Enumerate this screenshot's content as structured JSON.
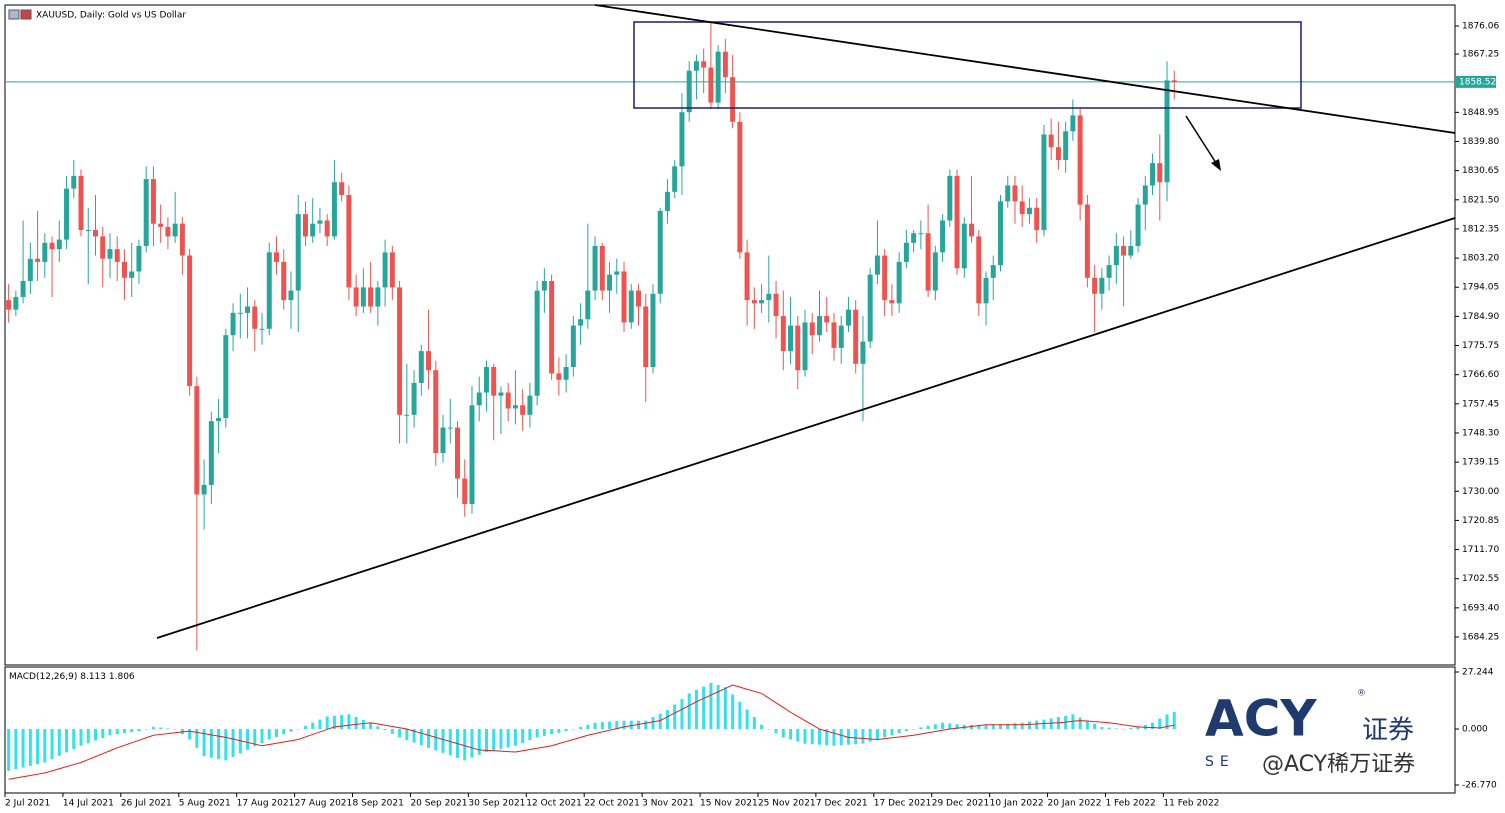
{
  "header": {
    "title": "XAUUSD, Daily: Gold vs US Dollar"
  },
  "chart_data": [
    {
      "type": "candlestick",
      "categories": [
        "2 Jul 2021",
        null,
        null,
        null,
        null,
        null,
        null,
        null,
        "14 Jul 2021",
        null,
        null,
        null,
        null,
        null,
        null,
        null,
        "26 Jul 2021",
        null,
        null,
        null,
        null,
        null,
        null,
        null,
        "5 Aug 2021",
        null,
        null,
        null,
        null,
        null,
        null,
        null,
        "17 Aug 2021",
        null,
        null,
        null,
        null,
        null,
        null,
        null,
        "27 Aug 2021",
        null,
        null,
        null,
        null,
        null,
        null,
        null,
        "8 Sep 2021",
        null,
        null,
        null,
        null,
        null,
        null,
        null,
        "20 Sep 2021",
        null,
        null,
        null,
        null,
        null,
        null,
        null,
        "30 Sep 2021",
        null,
        null,
        null,
        null,
        null,
        null,
        null,
        "12 Oct 2021",
        null,
        null,
        null,
        null,
        null,
        null,
        null,
        "22 Oct 2021",
        null,
        null,
        null,
        null,
        null,
        null,
        null,
        "3 Nov 2021",
        null,
        null,
        null,
        null,
        null,
        null,
        null,
        "15 Nov 2021",
        null,
        null,
        null,
        null,
        null,
        null,
        null,
        "25 Nov 2021",
        null,
        null,
        null,
        null,
        null,
        null,
        null,
        "7 Dec 2021",
        null,
        null,
        null,
        null,
        null,
        null,
        null,
        "17 Dec 2021",
        null,
        null,
        null,
        null,
        null,
        null,
        null,
        "29 Dec 2021",
        null,
        null,
        null,
        null,
        null,
        null,
        null,
        "10 Jan 2022",
        null,
        null,
        null,
        null,
        null,
        null,
        null,
        "20 Jan 2022",
        null,
        null,
        null,
        null,
        null,
        null,
        null,
        "1 Feb 2022",
        null,
        null,
        null,
        null,
        null,
        null,
        null,
        "11 Feb 2022",
        null
      ],
      "open": [
        1790,
        1787,
        1791,
        1796,
        1803,
        1802,
        1808,
        1806,
        1809,
        1825,
        1829,
        1812,
        1812,
        1810,
        1803,
        1806,
        1802,
        1797,
        1799,
        1807,
        1828,
        1814,
        1813,
        1810,
        1814,
        1804,
        1763,
        1729,
        1732,
        1752,
        1753,
        1779,
        1786,
        1786,
        1788,
        1781,
        1781,
        1805,
        1802,
        1790,
        1793,
        1817,
        1810,
        1814,
        1815,
        1810,
        1827,
        1823,
        1794,
        1788,
        1794,
        1788,
        1794,
        1805,
        1794,
        1754,
        1754,
        1764,
        1774,
        1768,
        1742,
        1750,
        1750,
        1734,
        1726,
        1757,
        1761,
        1769,
        1760,
        1761,
        1756,
        1757,
        1754,
        1760,
        1793,
        1796,
        1767,
        1765,
        1769,
        1782,
        1784,
        1793,
        1807,
        1793,
        1798,
        1799,
        1783,
        1793,
        1788,
        1769,
        1792,
        1818,
        1824,
        1832,
        1849,
        1862,
        1865,
        1863,
        1852,
        1868,
        1860,
        1846,
        1805,
        1790,
        1789,
        1790,
        1792,
        1785,
        1774,
        1782,
        1768,
        1783,
        1779,
        1785,
        1783,
        1775,
        1782,
        1787,
        1770,
        1777,
        1798,
        1804,
        1790,
        1789,
        1802,
        1808,
        1811,
        1811,
        1793,
        1805,
        1815,
        1829,
        1800,
        1814,
        1810,
        1789,
        1797,
        1801,
        1821,
        1826,
        1821,
        1817,
        1819,
        1812,
        1842,
        1838,
        1834,
        1843,
        1848,
        1820,
        1797,
        1792,
        1797,
        1801,
        1807,
        1804,
        1807,
        1820,
        1826,
        1833,
        1827,
        1859
      ],
      "high": [
        1795,
        1793,
        1815,
        1808,
        1818,
        1811,
        1810,
        1815,
        1829,
        1834,
        1831,
        1819,
        1823,
        1813,
        1811,
        1810,
        1806,
        1808,
        1809,
        1832,
        1832,
        1820,
        1816,
        1824,
        1816,
        1806,
        1766,
        1740,
        1755,
        1759,
        1781,
        1789,
        1792,
        1794,
        1790,
        1786,
        1808,
        1810,
        1806,
        1799,
        1823,
        1821,
        1822,
        1819,
        1817,
        1834,
        1830,
        1826,
        1798,
        1800,
        1802,
        1796,
        1809,
        1807,
        1796,
        1770,
        1768,
        1776,
        1787,
        1771,
        1754,
        1759,
        1752,
        1740,
        1763,
        1766,
        1771,
        1770,
        1763,
        1764,
        1768,
        1762,
        1764,
        1796,
        1800,
        1798,
        1772,
        1773,
        1785,
        1789,
        1814,
        1810,
        1808,
        1802,
        1803,
        1802,
        1795,
        1795,
        1792,
        1795,
        1819,
        1828,
        1834,
        1855,
        1865,
        1867,
        1869,
        1877,
        1870,
        1872,
        1867,
        1849,
        1809,
        1794,
        1795,
        1804,
        1796,
        1793,
        1791,
        1785,
        1787,
        1786,
        1793,
        1791,
        1786,
        1785,
        1791,
        1790,
        1785,
        1800,
        1815,
        1806,
        1795,
        1805,
        1812,
        1812,
        1815,
        1820,
        1807,
        1817,
        1831,
        1831,
        1816,
        1829,
        1812,
        1799,
        1804,
        1823,
        1829,
        1829,
        1826,
        1822,
        1822,
        1845,
        1847,
        1846,
        1846,
        1853,
        1850,
        1823,
        1801,
        1800,
        1804,
        1811,
        1810,
        1812,
        1822,
        1829,
        1836,
        1842,
        1865,
        1862
      ],
      "low": [
        1783,
        1785,
        1789,
        1792,
        1796,
        1797,
        1791,
        1802,
        1806,
        1822,
        1810,
        1795,
        1804,
        1794,
        1797,
        1796,
        1790,
        1791,
        1795,
        1805,
        1807,
        1808,
        1806,
        1808,
        1798,
        1760,
        1680,
        1718,
        1726,
        1742,
        1750,
        1774,
        1778,
        1778,
        1774,
        1776,
        1779,
        1798,
        1787,
        1781,
        1780,
        1807,
        1808,
        1811,
        1807,
        1809,
        1821,
        1790,
        1785,
        1786,
        1786,
        1782,
        1788,
        1790,
        1745,
        1745,
        1750,
        1760,
        1762,
        1738,
        1739,
        1745,
        1728,
        1722,
        1723,
        1752,
        1755,
        1746,
        1748,
        1752,
        1751,
        1749,
        1750,
        1757,
        1786,
        1765,
        1760,
        1761,
        1766,
        1776,
        1781,
        1790,
        1790,
        1786,
        1792,
        1780,
        1781,
        1782,
        1758,
        1767,
        1789,
        1814,
        1822,
        1823,
        1846,
        1853,
        1855,
        1850,
        1850,
        1855,
        1844,
        1803,
        1782,
        1781,
        1786,
        1783,
        1778,
        1768,
        1770,
        1762,
        1766,
        1773,
        1777,
        1780,
        1771,
        1770,
        1780,
        1767,
        1752,
        1775,
        1795,
        1785,
        1785,
        1786,
        1800,
        1805,
        1806,
        1791,
        1790,
        1802,
        1813,
        1798,
        1797,
        1808,
        1785,
        1782,
        1790,
        1799,
        1819,
        1814,
        1813,
        1814,
        1808,
        1810,
        1834,
        1831,
        1830,
        1840,
        1815,
        1794,
        1780,
        1787,
        1793,
        1795,
        1788,
        1803,
        1805,
        1812,
        1823,
        1815,
        1821,
        1853
      ],
      "close": [
        1787,
        1791,
        1796,
        1803,
        1802,
        1808,
        1806,
        1809,
        1825,
        1829,
        1812,
        1812,
        1810,
        1803,
        1806,
        1802,
        1797,
        1799,
        1807,
        1828,
        1814,
        1813,
        1810,
        1814,
        1804,
        1763,
        1729,
        1732,
        1752,
        1753,
        1779,
        1786,
        1786,
        1788,
        1781,
        1781,
        1805,
        1802,
        1790,
        1793,
        1817,
        1810,
        1814,
        1815,
        1810,
        1827,
        1823,
        1794,
        1788,
        1794,
        1788,
        1794,
        1805,
        1794,
        1754,
        1754,
        1764,
        1774,
        1768,
        1742,
        1750,
        1750,
        1734,
        1726,
        1757,
        1761,
        1769,
        1760,
        1761,
        1756,
        1757,
        1754,
        1760,
        1793,
        1796,
        1767,
        1765,
        1769,
        1782,
        1784,
        1793,
        1807,
        1793,
        1798,
        1799,
        1783,
        1793,
        1788,
        1769,
        1792,
        1818,
        1824,
        1832,
        1849,
        1862,
        1865,
        1863,
        1852,
        1868,
        1860,
        1846,
        1805,
        1790,
        1789,
        1790,
        1792,
        1785,
        1774,
        1782,
        1768,
        1783,
        1779,
        1785,
        1783,
        1775,
        1782,
        1787,
        1770,
        1777,
        1798,
        1804,
        1790,
        1789,
        1802,
        1808,
        1811,
        1811,
        1793,
        1805,
        1815,
        1829,
        1800,
        1814,
        1810,
        1789,
        1797,
        1801,
        1821,
        1826,
        1821,
        1817,
        1819,
        1812,
        1842,
        1838,
        1834,
        1843,
        1848,
        1820,
        1797,
        1792,
        1797,
        1801,
        1807,
        1804,
        1807,
        1820,
        1826,
        1833,
        1827,
        1859,
        1858.52
      ],
      "up_color": "#26a69a",
      "down_color": "#ef5350",
      "price_line_color": "#26a69a",
      "ylim": [
        1675.46,
        1882.65
      ],
      "yticks": [
        1876.06,
        1867.25,
        1848.95,
        {
          "value": 1839.8,
          "label": "1839.80"
        },
        1830.65,
        {
          "value": 1821.5,
          "label": "1821.50"
        },
        1812.35,
        {
          "value": 1803.2,
          "label": "1803.20"
        },
        1794.05,
        {
          "value": 1784.9,
          "label": "1784.90"
        },
        1775.75,
        {
          "value": 1766.6,
          "label": "1766.60"
        },
        1757.45,
        {
          "value": 1748.3,
          "label": "1748.30"
        },
        1739.15,
        {
          "value": 1730,
          "label": "1730.00"
        },
        1720.85,
        {
          "value": 1711.7,
          "label": "1711.70"
        },
        1702.55,
        {
          "value": 1693.4,
          "label": "1693.40"
        },
        1684.25
      ]
    },
    {
      "type": "macd",
      "title": "MACD(12,26,9)",
      "histogram": {
        "color": "#33e0ee",
        "values": [
          -20,
          -19.2,
          -18.4,
          -17.6,
          -16.8,
          -16,
          -14.4,
          -12.8,
          -11.2,
          -9.6,
          -8,
          -6.8,
          -5.5,
          -4.3,
          -3,
          -2.5,
          -2,
          -1.5,
          -1,
          0,
          1,
          0.7,
          0.3,
          0,
          -2.5,
          -5,
          -9,
          -13,
          -13.7,
          -14.3,
          -15,
          -13.3,
          -11.7,
          -10,
          -8.3,
          -6.7,
          -5,
          -3.8,
          -2.5,
          -1.3,
          0,
          1.5,
          3,
          4.5,
          6,
          6.3,
          6.7,
          7,
          5.7,
          4.3,
          3,
          1.3,
          -0.5,
          -2.3,
          -4,
          -5.3,
          -6.5,
          -7.8,
          -9,
          -10.2,
          -11.4,
          -12.6,
          -13.8,
          -15,
          -13.7,
          -12.3,
          -11,
          -10.3,
          -9.5,
          -8.8,
          -8,
          -6.7,
          -5.3,
          -4,
          -3.3,
          -2.5,
          -1.8,
          -1,
          0,
          1,
          2,
          3,
          3.3,
          3.5,
          3.8,
          4,
          4,
          4,
          4,
          5.7,
          7.3,
          9,
          11.7,
          14.3,
          17,
          18.7,
          20.3,
          22,
          21,
          20,
          16.5,
          13,
          9.3,
          5.7,
          2,
          0,
          -2,
          -4,
          -5,
          -6,
          -7,
          -7.3,
          -7.5,
          -7.8,
          -8,
          -7.8,
          -7.5,
          -7.3,
          -7,
          -6,
          -5,
          -4,
          -3,
          -2,
          -1,
          0,
          0.8,
          1.5,
          2.3,
          3,
          2.7,
          2.3,
          2,
          2,
          2,
          2,
          2,
          2.3,
          2.5,
          2.8,
          3,
          3.5,
          4,
          4.5,
          5,
          5.7,
          6.3,
          7,
          5.5,
          4,
          2.5,
          1,
          0.7,
          0.3,
          0,
          0.5,
          1,
          2,
          3,
          5,
          7,
          8.113
        ]
      },
      "signal": {
        "color": "#e0201b",
        "values": [
          -24,
          -23.4,
          -22.8,
          -22.2,
          -21.6,
          -21,
          -20,
          -19,
          -18,
          -17,
          -16,
          -14.6,
          -13.2,
          -11.8,
          -10.4,
          -9,
          -7.8,
          -6.6,
          -5.4,
          -4.2,
          -3,
          -2.6,
          -2.2,
          -1.8,
          -1.4,
          -1,
          -1.6,
          -2.2,
          -2.8,
          -3.4,
          -4,
          -4.8,
          -5.6,
          -6.4,
          -7.2,
          -8,
          -7.4,
          -6.8,
          -6.2,
          -5.6,
          -5,
          -3.8,
          -2.6,
          -1.4,
          -0.2,
          1,
          1.4,
          1.8,
          2.2,
          2.6,
          3,
          2.4,
          1.8,
          1.2,
          0.6,
          0,
          -1,
          -2,
          -3,
          -4,
          -5,
          -6,
          -7,
          -8,
          -9,
          -10,
          -10.2,
          -10.4,
          -10.6,
          -10.8,
          -11,
          -10.4,
          -9.8,
          -9.2,
          -8.6,
          -8,
          -7,
          -6,
          -5,
          -4,
          -3,
          -2.2,
          -1.4,
          -0.6,
          0.2,
          1,
          1.6,
          2.2,
          2.8,
          3.4,
          4,
          5.8,
          7.6,
          9.4,
          11.2,
          13,
          14.6,
          16.2,
          17.8,
          19.4,
          21,
          20,
          19,
          18,
          17,
          14.8,
          12.5,
          10.3,
          8,
          6,
          4,
          2,
          0,
          -1,
          -2,
          -3,
          -4,
          -4.3,
          -4.5,
          -4.8,
          -5,
          -4.6,
          -4.2,
          -3.8,
          -3.4,
          -3,
          -2.4,
          -1.8,
          -1.2,
          -0.6,
          0,
          0.4,
          0.8,
          1.2,
          1.6,
          2,
          2,
          2,
          2,
          2,
          2,
          2.2,
          2.4,
          2.6,
          2.8,
          3,
          3.3,
          3.7,
          4,
          3.8,
          3.5,
          3.3,
          3,
          2.5,
          2,
          1.5,
          1,
          0.8,
          0.7,
          0.5,
          1.2,
          1.806
        ]
      },
      "ylim": [
        -30.59,
        29.63
      ],
      "yticks": [
        27.244,
        {
          "value": 0,
          "label": "0.000"
        },
        {
          "value": -26.77,
          "label": "-26.770"
        }
      ]
    }
  ],
  "watermark": {
    "logo": "ACY",
    "registered": "®",
    "cn": "证券",
    "sub": "SE",
    "handle": "@ACY稀万证券"
  }
}
